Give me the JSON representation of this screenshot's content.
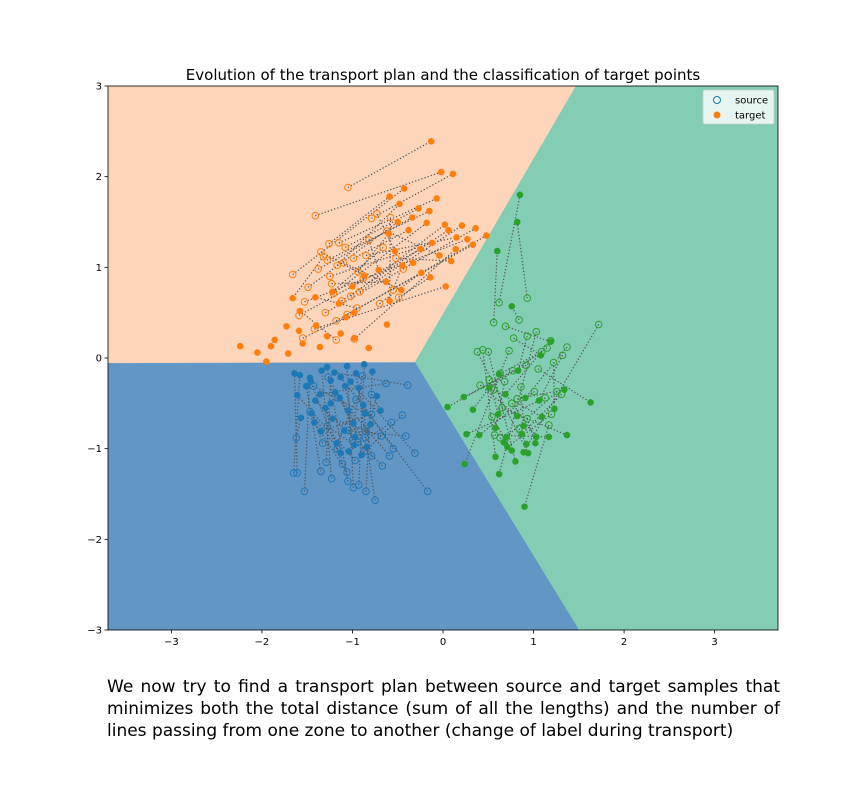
{
  "chart_data": {
    "type": "scatter",
    "title": "Evolution of the transport plan and the classification of target points",
    "xlabel": "",
    "ylabel": "",
    "xlim": [
      -3.7,
      3.7
    ],
    "ylim": [
      -3,
      3
    ],
    "xticks": [
      -3,
      -2,
      -1,
      0,
      1,
      2,
      3
    ],
    "xtick_labels": [
      "−3",
      "−2",
      "−1",
      "0",
      "1",
      "2",
      "3"
    ],
    "yticks": [
      -3,
      -2,
      -1,
      0,
      1,
      2,
      3
    ],
    "ytick_labels": [
      "−3",
      "−2",
      "−1",
      "0",
      "1",
      "2",
      "3"
    ],
    "grid": false,
    "legend": {
      "placement": "top-right",
      "entries": [
        {
          "label": "source",
          "marker": "hollow-circle"
        },
        {
          "label": "target",
          "marker": "filled-circle"
        }
      ]
    },
    "regions": [
      {
        "class": "orange",
        "color": "#fcd5bb",
        "polygon": [
          [
            -3.7,
            3.0
          ],
          [
            1.47,
            3.0
          ],
          [
            -0.31,
            -0.05
          ],
          [
            -3.7,
            -0.06
          ]
        ]
      },
      {
        "class": "green",
        "color": "#84cdb5",
        "polygon": [
          [
            1.47,
            3.0
          ],
          [
            3.7,
            3.0
          ],
          [
            3.7,
            -3.0
          ],
          [
            1.5,
            -3.0
          ],
          [
            -0.31,
            -0.05
          ]
        ]
      },
      {
        "class": "blue",
        "color": "#6196c5",
        "polygon": [
          [
            -3.7,
            -0.06
          ],
          [
            -0.31,
            -0.05
          ],
          [
            1.5,
            -3.0
          ],
          [
            -3.7,
            -3.0
          ]
        ]
      }
    ],
    "series": [
      {
        "name": "orange",
        "color": "#ff7f0e",
        "source": [
          [
            -1.05,
            1.88
          ],
          [
            -1.41,
            1.57
          ],
          [
            -0.79,
            1.54
          ],
          [
            -1.66,
            0.92
          ],
          [
            -1.26,
            1.26
          ],
          [
            -1.15,
            1.27
          ],
          [
            -1.17,
            1.02
          ],
          [
            -1.08,
            1.22
          ],
          [
            -1.28,
            1.08
          ],
          [
            -1.38,
            0.98
          ],
          [
            -1.49,
            0.78
          ],
          [
            -1.21,
            0.71
          ],
          [
            -1.02,
            0.68
          ],
          [
            -0.92,
            0.73
          ],
          [
            -1.3,
            0.5
          ],
          [
            -1.12,
            0.63
          ],
          [
            -0.99,
            1.1
          ],
          [
            -0.94,
            0.95
          ],
          [
            -0.85,
            1.13
          ],
          [
            -1.53,
            0.62
          ],
          [
            -1.25,
            0.9
          ],
          [
            -1.18,
            0.41
          ],
          [
            -1.06,
            0.48
          ],
          [
            -1.59,
            0.47
          ],
          [
            -0.98,
            0.21
          ],
          [
            -0.73,
            1.59
          ],
          [
            -0.62,
            1.4
          ],
          [
            -0.52,
            1.1
          ],
          [
            -0.44,
            0.98
          ],
          [
            -0.55,
            0.75
          ],
          [
            -0.82,
            1.3
          ],
          [
            -1.35,
            1.17
          ],
          [
            -0.7,
            0.6
          ],
          [
            -0.49,
            0.67
          ],
          [
            -1.42,
            0.32
          ],
          [
            -1.23,
            0.82
          ],
          [
            -1.1,
            1.05
          ],
          [
            -0.88,
            0.88
          ],
          [
            -0.66,
            1.22
          ],
          [
            -0.95,
            0.55
          ],
          [
            -1.32,
            1.12
          ],
          [
            -0.58,
            1.55
          ],
          [
            -1.18,
            0.2
          ],
          [
            -1.55,
            0.22
          ]
        ],
        "target": [
          [
            -0.13,
            2.39
          ],
          [
            -0.02,
            2.05
          ],
          [
            0.11,
            2.03
          ],
          [
            -0.43,
            1.87
          ],
          [
            -0.59,
            1.78
          ],
          [
            -0.07,
            1.76
          ],
          [
            -0.48,
            1.7
          ],
          [
            -0.27,
            1.65
          ],
          [
            -0.15,
            1.62
          ],
          [
            -0.34,
            1.55
          ],
          [
            -0.5,
            1.5
          ],
          [
            -0.18,
            1.49
          ],
          [
            0.02,
            1.47
          ],
          [
            0.21,
            1.46
          ],
          [
            0.36,
            1.43
          ],
          [
            0.06,
            1.41
          ],
          [
            -0.38,
            1.41
          ],
          [
            -0.6,
            1.37
          ],
          [
            0.15,
            1.33
          ],
          [
            0.27,
            1.31
          ],
          [
            -0.12,
            1.27
          ],
          [
            0.48,
            1.35
          ],
          [
            0.33,
            1.25
          ],
          [
            -0.25,
            1.2
          ],
          [
            0.14,
            1.2
          ],
          [
            -0.53,
            1.18
          ],
          [
            -0.04,
            1.13
          ],
          [
            0.09,
            1.07
          ],
          [
            -0.33,
            1.05
          ],
          [
            -0.45,
            1.02
          ],
          [
            -0.71,
            0.97
          ],
          [
            -0.87,
            0.91
          ],
          [
            -0.24,
            0.94
          ],
          [
            -0.14,
            0.89
          ],
          [
            0.03,
            0.79
          ],
          [
            -0.63,
            0.84
          ],
          [
            -0.46,
            0.75
          ],
          [
            -1.0,
            0.79
          ],
          [
            -1.22,
            0.73
          ],
          [
            -1.41,
            0.67
          ],
          [
            -1.66,
            0.66
          ],
          [
            -0.59,
            0.63
          ],
          [
            -1.58,
            0.52
          ],
          [
            -1.07,
            0.45
          ],
          [
            -0.62,
            0.37
          ],
          [
            -1.4,
            0.36
          ],
          [
            -1.59,
            0.3
          ],
          [
            -1.73,
            0.35
          ],
          [
            -1.13,
            0.27
          ],
          [
            -0.98,
            0.22
          ],
          [
            -1.86,
            0.2
          ],
          [
            -1.9,
            0.13
          ],
          [
            -2.24,
            0.13
          ],
          [
            -2.05,
            0.06
          ],
          [
            -1.71,
            0.05
          ],
          [
            -1.95,
            -0.04
          ],
          [
            -1.36,
            0.12
          ],
          [
            -1.28,
            0.24
          ],
          [
            -1.55,
            0.16
          ],
          [
            -0.82,
            0.11
          ],
          [
            -0.98,
            0.5
          ],
          [
            -1.15,
            0.6
          ]
        ]
      },
      {
        "name": "green",
        "color": "#2ca02c",
        "source": [
          [
            0.62,
            0.61
          ],
          [
            0.93,
            0.66
          ],
          [
            0.56,
            0.39
          ],
          [
            0.84,
            0.42
          ],
          [
            0.69,
            0.35
          ],
          [
            0.78,
            0.22
          ],
          [
            0.93,
            0.24
          ],
          [
            1.09,
            0.07
          ],
          [
            1.15,
            0.11
          ],
          [
            1.19,
            0.19
          ],
          [
            1.37,
            0.12
          ],
          [
            1.32,
            0.03
          ],
          [
            1.22,
            -0.05
          ],
          [
            1.05,
            -0.12
          ],
          [
            0.92,
            -0.08
          ],
          [
            0.77,
            -0.14
          ],
          [
            0.63,
            -0.17
          ],
          [
            0.51,
            -0.24
          ],
          [
            0.41,
            -0.3
          ],
          [
            0.56,
            -0.35
          ],
          [
            0.68,
            -0.26
          ],
          [
            0.86,
            -0.32
          ],
          [
            1.01,
            -0.37
          ],
          [
            1.13,
            -0.44
          ],
          [
            1.26,
            -0.37
          ],
          [
            1.31,
            -0.4
          ],
          [
            0.76,
            -0.5
          ],
          [
            0.65,
            -0.55
          ],
          [
            0.57,
            -0.85
          ],
          [
            0.63,
            -0.88
          ],
          [
            0.84,
            -0.78
          ],
          [
            0.93,
            -0.67
          ],
          [
            0.54,
            -0.65
          ],
          [
            1.72,
            0.37
          ],
          [
            0.38,
            0.07
          ],
          [
            0.44,
            0.09
          ],
          [
            0.5,
            0.07
          ],
          [
            0.73,
            0.08
          ],
          [
            1.03,
            0.29
          ],
          [
            1.17,
            -0.74
          ],
          [
            1.2,
            -0.62
          ],
          [
            0.82,
            -0.45
          ]
        ],
        "target": [
          [
            0.85,
            1.8
          ],
          [
            0.82,
            1.5
          ],
          [
            0.6,
            1.18
          ],
          [
            0.76,
            0.57
          ],
          [
            1.19,
            0.18
          ],
          [
            1.08,
            0.03
          ],
          [
            0.83,
            -0.14
          ],
          [
            0.62,
            -0.18
          ],
          [
            0.51,
            -0.33
          ],
          [
            0.69,
            -0.4
          ],
          [
            0.91,
            -0.44
          ],
          [
            1.06,
            -0.47
          ],
          [
            1.23,
            -0.56
          ],
          [
            1.63,
            -0.49
          ],
          [
            0.23,
            -0.43
          ],
          [
            0.05,
            -0.54
          ],
          [
            0.33,
            -0.57
          ],
          [
            0.61,
            -0.62
          ],
          [
            0.82,
            -0.64
          ],
          [
            1.09,
            -0.65
          ],
          [
            0.58,
            -0.77
          ],
          [
            0.89,
            -0.75
          ],
          [
            0.4,
            -0.85
          ],
          [
            0.26,
            -0.84
          ],
          [
            0.7,
            -0.87
          ],
          [
            0.87,
            -0.84
          ],
          [
            1.03,
            -0.87
          ],
          [
            1.37,
            -0.85
          ],
          [
            1.17,
            -0.87
          ],
          [
            0.67,
            -0.93
          ],
          [
            0.92,
            -0.95
          ],
          [
            1.02,
            -0.94
          ],
          [
            0.76,
            -1.02
          ],
          [
            0.89,
            -1.04
          ],
          [
            0.94,
            -1.05
          ],
          [
            0.58,
            -1.09
          ],
          [
            0.8,
            -1.14
          ],
          [
            0.24,
            -1.17
          ],
          [
            0.62,
            -1.28
          ],
          [
            0.9,
            -1.64
          ],
          [
            0.71,
            -0.98
          ],
          [
            1.34,
            -0.35
          ]
        ]
      },
      {
        "name": "blue",
        "color": "#1f77b4",
        "source": [
          [
            -1.61,
            -1.27
          ],
          [
            -1.65,
            -1.27
          ],
          [
            -1.53,
            -1.47
          ],
          [
            -1.35,
            -1.25
          ],
          [
            -1.23,
            -1.33
          ],
          [
            -1.05,
            -1.36
          ],
          [
            -0.99,
            -1.43
          ],
          [
            -0.93,
            -1.4
          ],
          [
            -0.85,
            -1.47
          ],
          [
            -0.75,
            -1.57
          ],
          [
            -0.17,
            -1.47
          ],
          [
            -1.29,
            -1.15
          ],
          [
            -1.11,
            -1.17
          ],
          [
            -0.97,
            -1.13
          ],
          [
            -0.67,
            -1.19
          ],
          [
            -0.59,
            -1.08
          ],
          [
            -0.31,
            -1.05
          ],
          [
            -0.79,
            -1.08
          ],
          [
            -0.87,
            -1.03
          ],
          [
            -1.17,
            -1.0
          ],
          [
            -1.33,
            -0.94
          ],
          [
            -1.62,
            -0.88
          ],
          [
            -1.0,
            -0.91
          ],
          [
            -0.55,
            -1.0
          ],
          [
            -0.86,
            -0.88
          ],
          [
            -0.68,
            -0.86
          ],
          [
            -0.41,
            -0.86
          ],
          [
            -0.85,
            -0.81
          ],
          [
            -1.05,
            -0.8
          ],
          [
            -1.28,
            -0.75
          ],
          [
            -1.47,
            -0.59
          ],
          [
            -0.79,
            -0.62
          ],
          [
            -0.57,
            -0.71
          ],
          [
            -0.45,
            -0.63
          ],
          [
            -0.96,
            -0.46
          ],
          [
            -1.16,
            -0.44
          ],
          [
            -1.43,
            -0.31
          ],
          [
            -0.79,
            -0.4
          ],
          [
            -0.63,
            -0.28
          ],
          [
            -0.39,
            -0.3
          ],
          [
            -0.89,
            -0.2
          ],
          [
            -1.27,
            -0.21
          ],
          [
            -1.06,
            -1.26
          ],
          [
            -0.94,
            -0.93
          ]
        ],
        "target": [
          [
            -1.64,
            -0.17
          ],
          [
            -1.58,
            -0.19
          ],
          [
            -1.47,
            -0.22
          ],
          [
            -1.51,
            -0.31
          ],
          [
            -1.34,
            -0.14
          ],
          [
            -1.28,
            -0.1
          ],
          [
            -1.06,
            -0.09
          ],
          [
            -0.87,
            -0.07
          ],
          [
            -0.78,
            -0.15
          ],
          [
            -0.96,
            -0.17
          ],
          [
            -1.13,
            -0.21
          ],
          [
            -1.24,
            -0.25
          ],
          [
            -1.46,
            -0.26
          ],
          [
            -1.61,
            -0.41
          ],
          [
            -1.41,
            -0.47
          ],
          [
            -1.19,
            -0.38
          ],
          [
            -1.02,
            -0.26
          ],
          [
            -0.93,
            -0.33
          ],
          [
            -1.14,
            -0.44
          ],
          [
            -1.3,
            -0.55
          ],
          [
            -1.45,
            -0.61
          ],
          [
            -1.57,
            -0.66
          ],
          [
            -1.05,
            -0.58
          ],
          [
            -0.88,
            -0.52
          ],
          [
            -0.73,
            -0.42
          ],
          [
            -1.22,
            -0.67
          ],
          [
            -1.09,
            -0.8
          ],
          [
            -0.97,
            -0.87
          ],
          [
            -0.8,
            -0.73
          ],
          [
            -0.98,
            -0.96
          ],
          [
            -1.13,
            -1.05
          ],
          [
            -1.35,
            -0.81
          ],
          [
            -1.04,
            -1.03
          ],
          [
            -0.9,
            -1.07
          ],
          [
            -1.17,
            -0.94
          ],
          [
            -1.24,
            -0.5
          ],
          [
            -0.86,
            -0.61
          ],
          [
            -0.69,
            -0.58
          ],
          [
            -1.36,
            -0.4
          ],
          [
            -1.2,
            -0.16
          ],
          [
            -0.99,
            -0.72
          ],
          [
            -0.84,
            -0.98
          ],
          [
            -1.42,
            -0.71
          ],
          [
            -1.08,
            -0.31
          ]
        ]
      }
    ]
  },
  "caption": "We now try to find a transport plan between source and target samples that minimizes both the total distance (sum of all the lengths) and the number of lines passing from one zone to another (change of label during transport)"
}
